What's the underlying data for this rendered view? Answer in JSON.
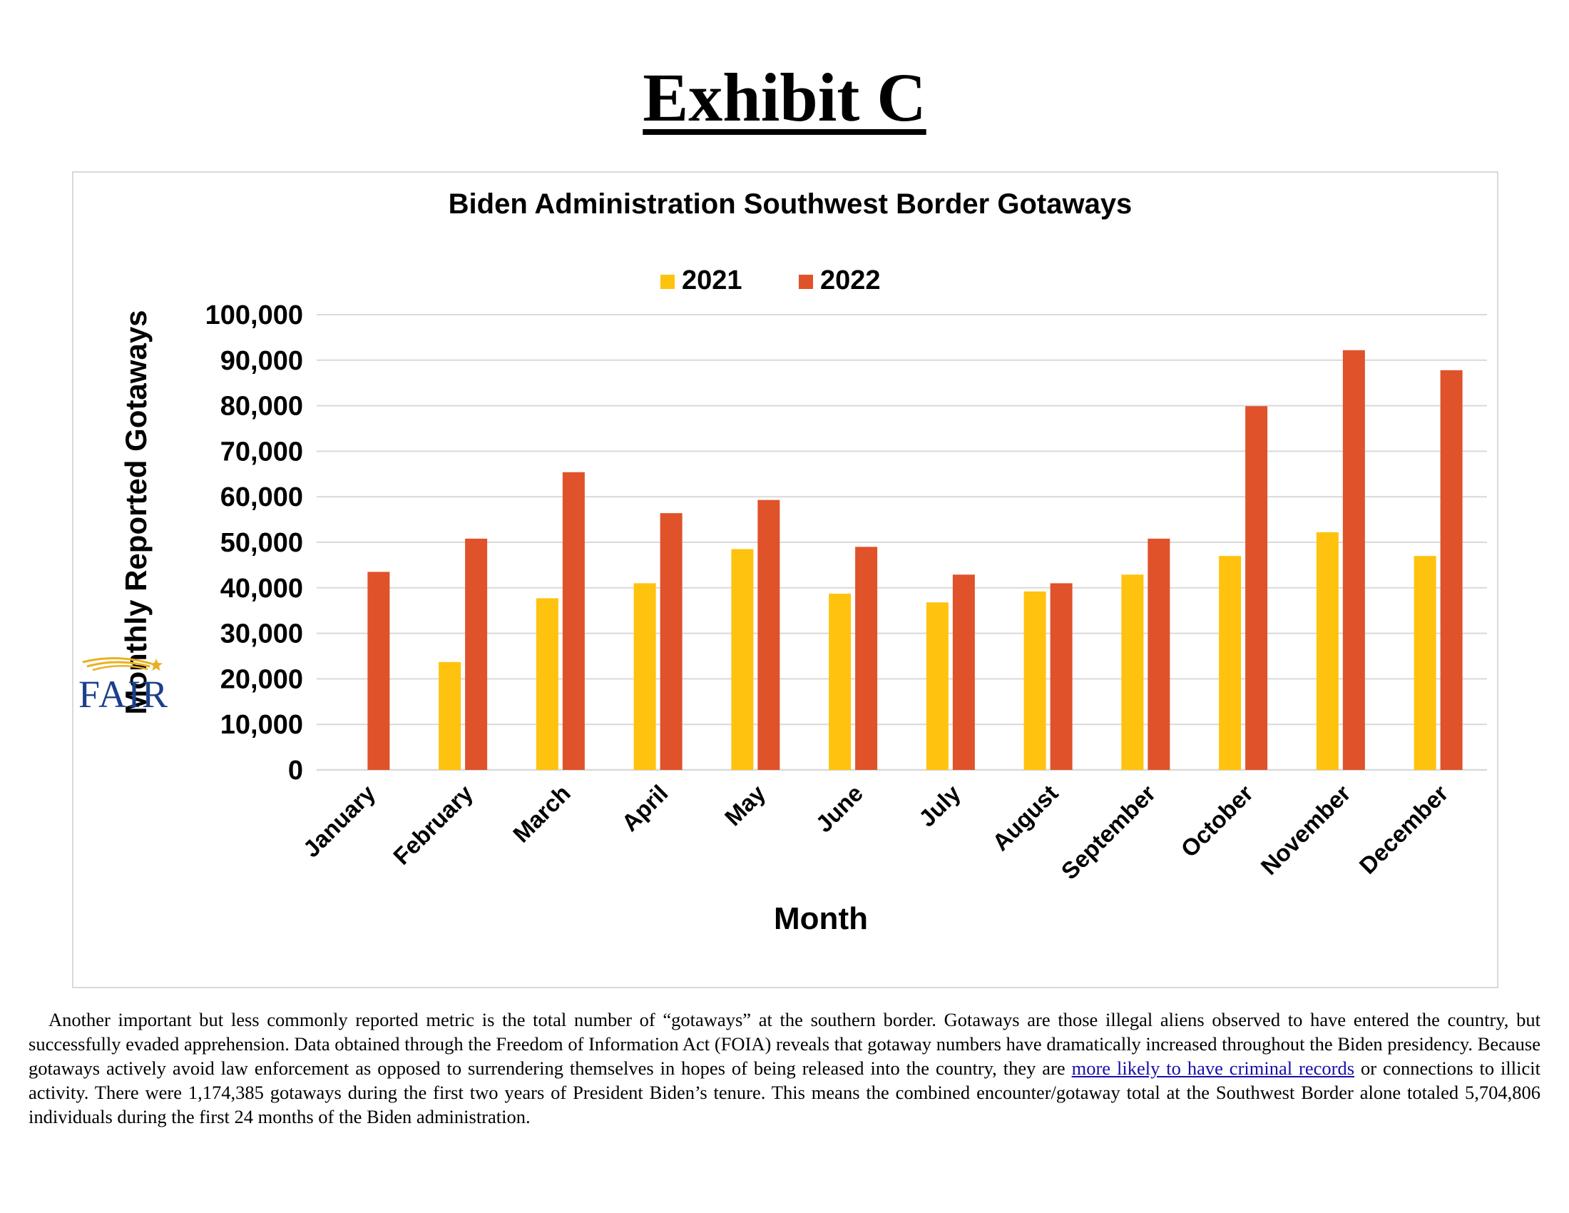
{
  "page": {
    "exhibit_title": "Exhibit C",
    "logo_text": "FAIR"
  },
  "colors": {
    "series_2021": "#FFC20E",
    "series_2022": "#E0522A",
    "gridline": "#d9d9d9",
    "logo_blue": "#1B3F8B",
    "logo_gold": "#E8B124",
    "link": "#1a0dab"
  },
  "chart_data": {
    "type": "bar",
    "title": "Biden Administration Southwest Border Gotaways",
    "xlabel": "Month",
    "ylabel": "Monthly Reported Gotaways",
    "ylim": [
      0,
      100000
    ],
    "ytick_step": 10000,
    "yticks": [
      "0",
      "10,000",
      "20,000",
      "30,000",
      "40,000",
      "50,000",
      "60,000",
      "70,000",
      "80,000",
      "90,000",
      "100,000"
    ],
    "grid": true,
    "legend_position": "top-center",
    "categories": [
      "January",
      "February",
      "March",
      "April",
      "May",
      "June",
      "July",
      "August",
      "September",
      "October",
      "November",
      "December"
    ],
    "series": [
      {
        "name": "2021",
        "values": [
          null,
          23700,
          37700,
          41000,
          48500,
          38700,
          36800,
          39200,
          42900,
          47000,
          52200,
          47000
        ]
      },
      {
        "name": "2022",
        "values": [
          43500,
          50800,
          65400,
          56400,
          59300,
          49000,
          42900,
          41000,
          50800,
          79900,
          92200,
          87800
        ]
      }
    ]
  },
  "paragraph": {
    "line1": "Another important but less commonly reported metric is the total number of “gotaways” at the southern border. Gotaways are those illegal aliens observed to have entered the country, but successfully evaded apprehension. Data obtained through the Freedom of Information Act (FOIA) reveals that gotaway numbers have dramatically increased throughout the Biden presidency. Because gotaways actively avoid law enforcement as opposed to surrendering themselves in hopes of being released into the country, they are ",
    "link_text": "more likely to have criminal records",
    "line2": " or connections to illicit activity. There were 1,174,385 gotaways during the first two years of President Biden’s tenure. This means the combined encounter/gotaway total at the Southwest Border alone totaled 5,704,806 individuals during the first 24 months of the Biden administration."
  }
}
